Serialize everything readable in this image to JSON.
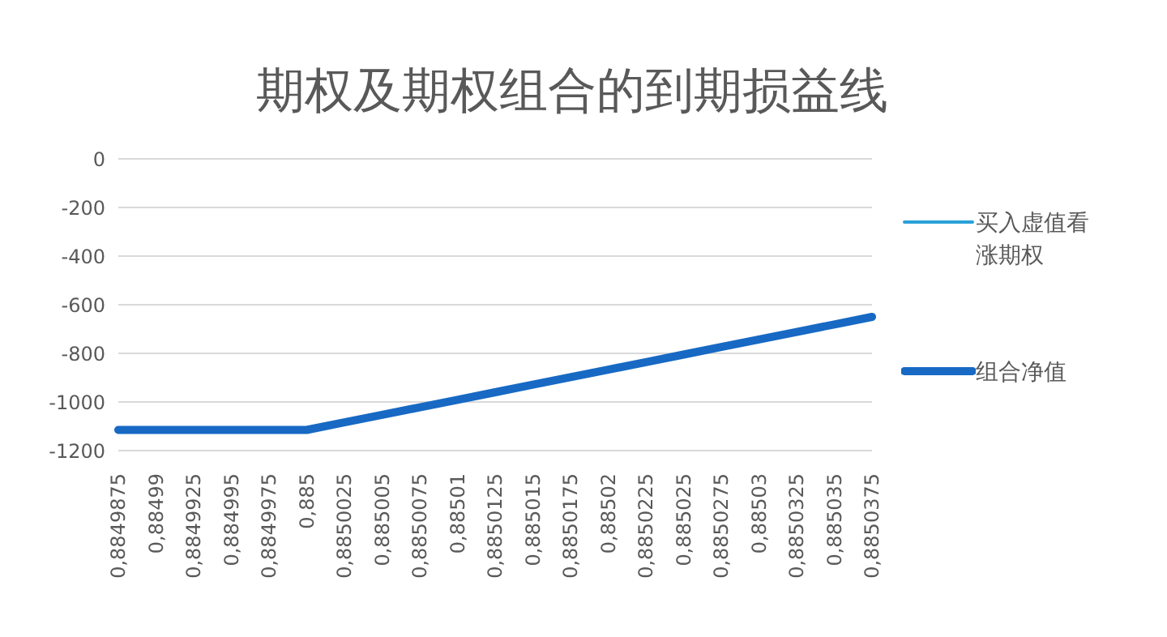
{
  "chart_data": {
    "type": "line",
    "title": "期权及期权组合的到期损益线",
    "categories": [
      "0,8849875",
      "0,88499",
      "0,8849925",
      "0,884995",
      "0,8849975",
      "0,885",
      "0,8850025",
      "0,885005",
      "0,8850075",
      "0,88501",
      "0,8850125",
      "0,885015",
      "0,8850175",
      "0,88502",
      "0,8850225",
      "0,885025",
      "0,8850275",
      "0,88503",
      "0,8850325",
      "0,885035",
      "0,8850375"
    ],
    "series": [
      {
        "name": "买入虚值看涨期权",
        "color": "#2aa0d8",
        "values": [
          null,
          null,
          null,
          null,
          null,
          null,
          null,
          null,
          null,
          null,
          null,
          null,
          null,
          null,
          null,
          null,
          null,
          null,
          null,
          null,
          null
        ]
      },
      {
        "name": "组合净值",
        "color": "#1769c4",
        "values": [
          -1115,
          -1115,
          -1115,
          -1115,
          -1115,
          -1115,
          -1084,
          -1053,
          -1022,
          -991,
          -960,
          -929,
          -898,
          -867,
          -836,
          -805,
          -774,
          -743,
          -712,
          -681,
          -650
        ]
      }
    ],
    "ylim": [
      -1200,
      0
    ],
    "yticks": [
      0,
      -200,
      -400,
      -600,
      -800,
      -1000,
      -1200
    ],
    "grid": "y",
    "legend": "right",
    "marker": "none",
    "line_style": "solid"
  }
}
